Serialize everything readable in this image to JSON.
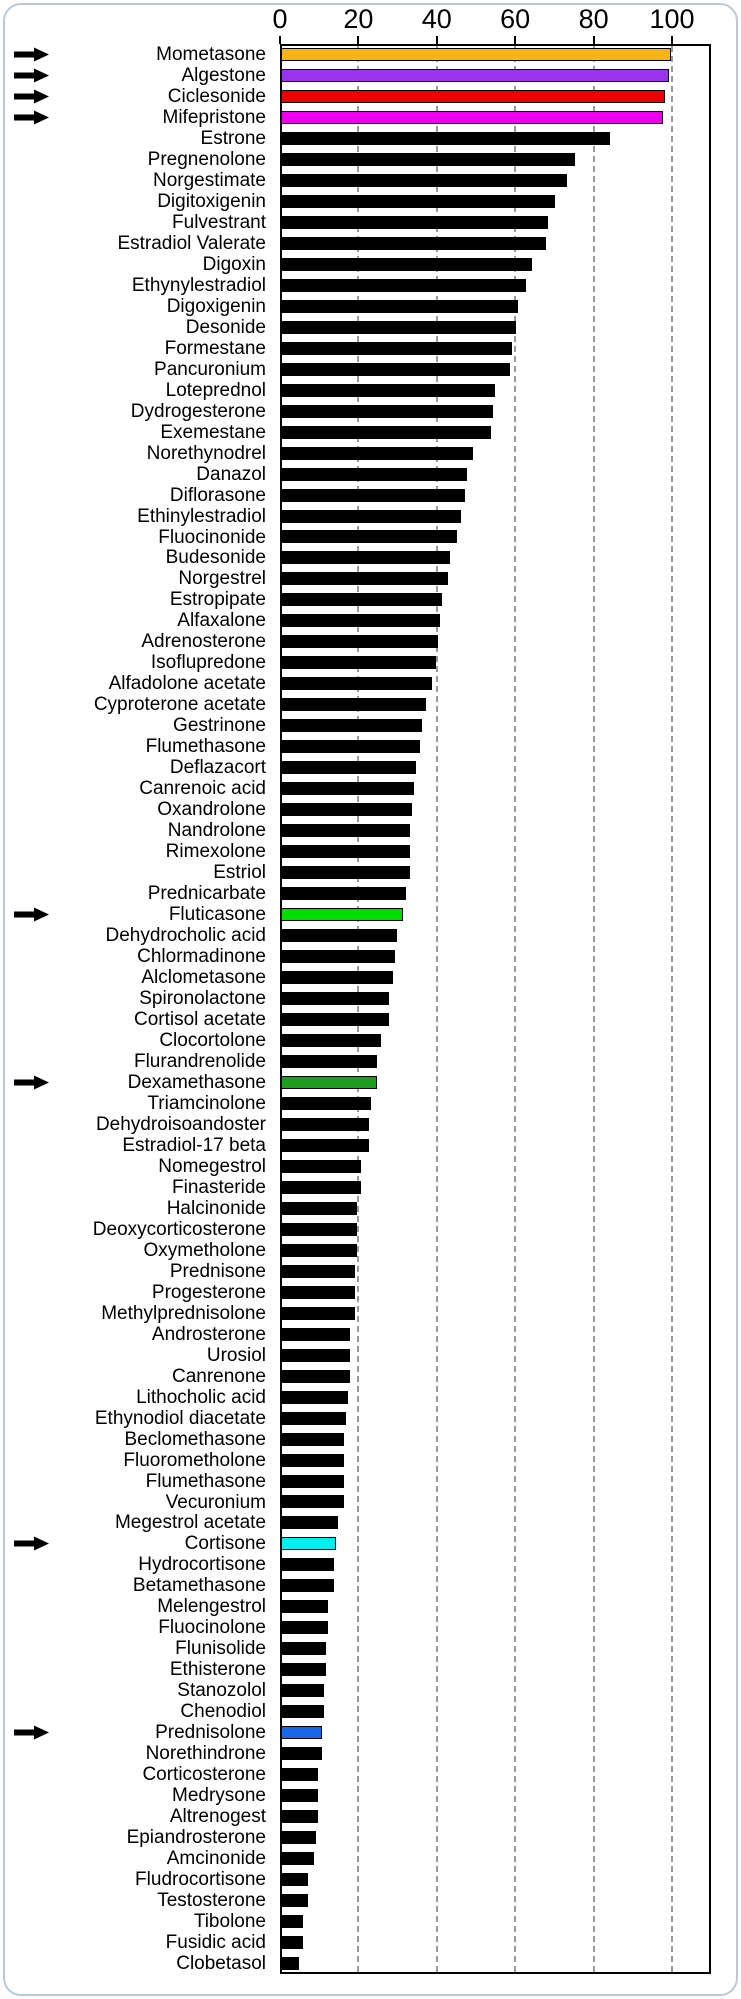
{
  "chart_data": {
    "type": "bar",
    "orientation": "horizontal-bars",
    "title": "",
    "xlabel": "",
    "ylabel": "",
    "x_axis": {
      "position": "top",
      "ticks": [
        0,
        20,
        40,
        60,
        80,
        100
      ],
      "range_shown": [
        0,
        110
      ]
    },
    "grid": {
      "vertical_dashed_lines_at": [
        20,
        40,
        60,
        80,
        100
      ]
    },
    "default_bar_color": "#000000",
    "highlight_note": "arrow = black arrow marker at left margin",
    "bars": [
      {
        "label": "Mometasone",
        "value": 99.5,
        "color": "#F7B515",
        "arrow": true
      },
      {
        "label": "Algestone",
        "value": 99,
        "color": "#9933EE",
        "arrow": true
      },
      {
        "label": "Ciclesonide",
        "value": 98,
        "color": "#EE0000",
        "arrow": true
      },
      {
        "label": "Mifepristone",
        "value": 97.5,
        "color": "#EE00EE",
        "arrow": true
      },
      {
        "label": "Estrone",
        "value": 84
      },
      {
        "label": "Pregnenolone",
        "value": 75
      },
      {
        "label": "Norgestimate",
        "value": 73
      },
      {
        "label": "Digitoxigenin",
        "value": 70
      },
      {
        "label": "Fulvestrant",
        "value": 68
      },
      {
        "label": "Estradiol Valerate",
        "value": 67.5
      },
      {
        "label": "Digoxin",
        "value": 64
      },
      {
        "label": "Ethynylestradiol",
        "value": 62.5
      },
      {
        "label": "Digoxigenin",
        "value": 60.5
      },
      {
        "label": "Desonide",
        "value": 60
      },
      {
        "label": "Formestane",
        "value": 59
      },
      {
        "label": "Pancuronium",
        "value": 58.5
      },
      {
        "label": "Loteprednol",
        "value": 54.5
      },
      {
        "label": "Dydrogesterone",
        "value": 54
      },
      {
        "label": "Exemestane",
        "value": 53.5
      },
      {
        "label": "Norethynodrel",
        "value": 49
      },
      {
        "label": "Danazol",
        "value": 47.5
      },
      {
        "label": "Diflorasone",
        "value": 47
      },
      {
        "label": "Ethinylestradiol",
        "value": 46
      },
      {
        "label": "Fluocinonide",
        "value": 45
      },
      {
        "label": "Budesonide",
        "value": 43
      },
      {
        "label": "Norgestrel",
        "value": 42.5
      },
      {
        "label": "Estropipate",
        "value": 41
      },
      {
        "label": "Alfaxalone",
        "value": 40.5
      },
      {
        "label": "Adrenosterone",
        "value": 40
      },
      {
        "label": "Isoflupredone",
        "value": 39.5
      },
      {
        "label": "Alfadolone acetate",
        "value": 38.5
      },
      {
        "label": "Cyproterone acetate",
        "value": 37
      },
      {
        "label": "Gestrinone",
        "value": 36
      },
      {
        "label": "Flumethasone",
        "value": 35.5
      },
      {
        "label": "Deflazacort",
        "value": 34.5
      },
      {
        "label": "Canrenoic acid",
        "value": 34
      },
      {
        "label": "Oxandrolone",
        "value": 33.5
      },
      {
        "label": "Nandrolone",
        "value": 33
      },
      {
        "label": "Rimexolone",
        "value": 33
      },
      {
        "label": "Estriol",
        "value": 33
      },
      {
        "label": "Prednicarbate",
        "value": 32
      },
      {
        "label": "Fluticasone",
        "value": 31,
        "color": "#00DD00",
        "arrow": true
      },
      {
        "label": "Dehydrocholic acid",
        "value": 29.5
      },
      {
        "label": "Chlormadinone",
        "value": 29
      },
      {
        "label": "Alclometasone",
        "value": 28.5
      },
      {
        "label": "Spironolactone",
        "value": 27.5
      },
      {
        "label": "Cortisol acetate",
        "value": 27.5
      },
      {
        "label": "Clocortolone",
        "value": 25.5
      },
      {
        "label": "Flurandrenolide",
        "value": 24.5
      },
      {
        "label": "Dexamethasone",
        "value": 24.5,
        "color": "#1E9C1E",
        "arrow": true
      },
      {
        "label": "Triamcinolone",
        "value": 23
      },
      {
        "label": "Dehydroisoandoster",
        "value": 22.5
      },
      {
        "label": "Estradiol-17 beta",
        "value": 22.5
      },
      {
        "label": "Nomegestrol",
        "value": 20.5
      },
      {
        "label": "Finasteride",
        "value": 20.5
      },
      {
        "label": "Halcinonide",
        "value": 19.5
      },
      {
        "label": "Deoxycorticosterone",
        "value": 19.5
      },
      {
        "label": "Oxymetholone",
        "value": 19.5
      },
      {
        "label": "Prednisone",
        "value": 19
      },
      {
        "label": "Progesterone",
        "value": 19
      },
      {
        "label": "Methylprednisolone",
        "value": 19
      },
      {
        "label": "Androsterone",
        "value": 17.5
      },
      {
        "label": "Urosiol",
        "value": 17.5
      },
      {
        "label": "Canrenone",
        "value": 17.5
      },
      {
        "label": "Lithocholic acid",
        "value": 17
      },
      {
        "label": "Ethynodiol diacetate",
        "value": 16.5
      },
      {
        "label": "Beclomethasone",
        "value": 16
      },
      {
        "label": "Fluorometholone",
        "value": 16
      },
      {
        "label": "Flumethasone",
        "value": 16
      },
      {
        "label": "Vecuronium",
        "value": 16
      },
      {
        "label": "Megestrol acetate",
        "value": 14.5
      },
      {
        "label": "Cortisone",
        "value": 14,
        "color": "#00EEEE",
        "arrow": true
      },
      {
        "label": "Hydrocortisone",
        "value": 13.5
      },
      {
        "label": "Betamethasone",
        "value": 13.5
      },
      {
        "label": "Melengestrol",
        "value": 12
      },
      {
        "label": "Fluocinolone",
        "value": 12
      },
      {
        "label": "Flunisolide",
        "value": 11.5
      },
      {
        "label": "Ethisterone",
        "value": 11.5
      },
      {
        "label": "Stanozolol",
        "value": 11
      },
      {
        "label": "Chenodiol",
        "value": 11
      },
      {
        "label": "Prednisolone",
        "value": 10.5,
        "color": "#1A66E8",
        "arrow": true
      },
      {
        "label": "Norethindrone",
        "value": 10.5
      },
      {
        "label": "Corticosterone",
        "value": 9.5
      },
      {
        "label": "Medrysone",
        "value": 9.5
      },
      {
        "label": "Altrenogest",
        "value": 9.5
      },
      {
        "label": "Epiandrosterone",
        "value": 9
      },
      {
        "label": "Amcinonide",
        "value": 8.5
      },
      {
        "label": "Fludrocortisone",
        "value": 7
      },
      {
        "label": "Testosterone",
        "value": 7
      },
      {
        "label": "Tibolone",
        "value": 5.5
      },
      {
        "label": "Fusidic acid",
        "value": 5.5
      },
      {
        "label": "Clobetasol",
        "value": 4.5
      }
    ]
  }
}
